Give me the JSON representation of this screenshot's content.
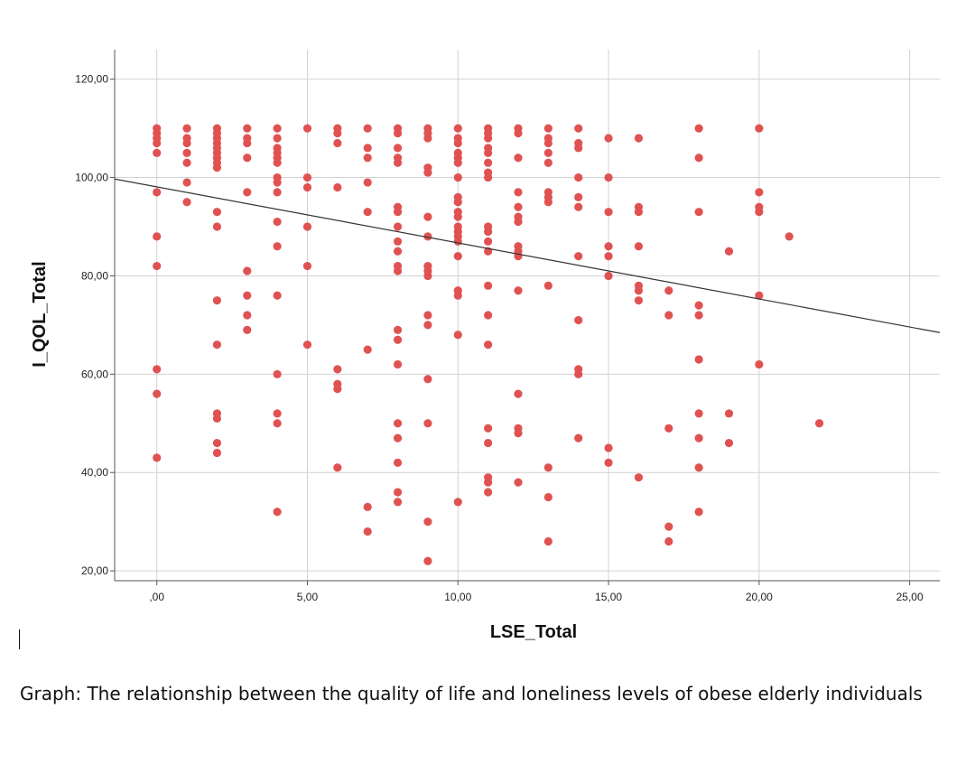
{
  "chart_data": {
    "type": "scatter",
    "xlabel": "LSE_Total",
    "ylabel": "I_QOL_Total",
    "xlim": [
      -1.4,
      26
    ],
    "ylim": [
      18,
      126
    ],
    "x_ticks": [
      0,
      5,
      10,
      15,
      20,
      25
    ],
    "x_tick_labels": [
      ",00",
      "5,00",
      "10,00",
      "15,00",
      "20,00",
      "25,00"
    ],
    "y_ticks": [
      20,
      40,
      60,
      80,
      100,
      120
    ],
    "y_tick_labels": [
      "20,00",
      "40,00",
      "60,00",
      "80,00",
      "100,00",
      "120,00"
    ],
    "grid": true,
    "point_color": "#e05252",
    "line_color": "#333333",
    "fit_line": {
      "intercept": 98.1,
      "slope": -1.14
    },
    "points": [
      [
        0,
        110
      ],
      [
        0,
        109
      ],
      [
        0,
        108
      ],
      [
        0,
        107
      ],
      [
        0,
        105
      ],
      [
        0,
        97
      ],
      [
        0,
        88
      ],
      [
        0,
        82
      ],
      [
        0,
        61
      ],
      [
        0,
        56
      ],
      [
        0,
        43
      ],
      [
        1,
        110
      ],
      [
        1,
        108
      ],
      [
        1,
        107
      ],
      [
        1,
        105
      ],
      [
        1,
        103
      ],
      [
        1,
        99
      ],
      [
        1,
        95
      ],
      [
        2,
        110
      ],
      [
        2,
        109
      ],
      [
        2,
        108
      ],
      [
        2,
        107
      ],
      [
        2,
        106
      ],
      [
        2,
        105
      ],
      [
        2,
        104
      ],
      [
        2,
        103
      ],
      [
        2,
        102
      ],
      [
        2,
        93
      ],
      [
        2,
        90
      ],
      [
        2,
        75
      ],
      [
        2,
        66
      ],
      [
        2,
        52
      ],
      [
        2,
        51
      ],
      [
        2,
        46
      ],
      [
        2,
        44
      ],
      [
        3,
        110
      ],
      [
        3,
        108
      ],
      [
        3,
        107
      ],
      [
        3,
        104
      ],
      [
        3,
        97
      ],
      [
        3,
        81
      ],
      [
        3,
        76
      ],
      [
        3,
        72
      ],
      [
        3,
        69
      ],
      [
        4,
        110
      ],
      [
        4,
        108
      ],
      [
        4,
        106
      ],
      [
        4,
        105
      ],
      [
        4,
        104
      ],
      [
        4,
        103
      ],
      [
        4,
        100
      ],
      [
        4,
        99
      ],
      [
        4,
        97
      ],
      [
        4,
        91
      ],
      [
        4,
        86
      ],
      [
        4,
        76
      ],
      [
        4,
        60
      ],
      [
        4,
        52
      ],
      [
        4,
        50
      ],
      [
        4,
        32
      ],
      [
        5,
        110
      ],
      [
        5,
        100
      ],
      [
        5,
        98
      ],
      [
        5,
        90
      ],
      [
        5,
        82
      ],
      [
        5,
        66
      ],
      [
        6,
        110
      ],
      [
        6,
        109
      ],
      [
        6,
        107
      ],
      [
        6,
        98
      ],
      [
        6,
        61
      ],
      [
        6,
        58
      ],
      [
        6,
        57
      ],
      [
        6,
        41
      ],
      [
        7,
        110
      ],
      [
        7,
        106
      ],
      [
        7,
        104
      ],
      [
        7,
        99
      ],
      [
        7,
        93
      ],
      [
        7,
        65
      ],
      [
        7,
        33
      ],
      [
        7,
        28
      ],
      [
        8,
        110
      ],
      [
        8,
        109
      ],
      [
        8,
        106
      ],
      [
        8,
        104
      ],
      [
        8,
        103
      ],
      [
        8,
        94
      ],
      [
        8,
        93
      ],
      [
        8,
        90
      ],
      [
        8,
        87
      ],
      [
        8,
        85
      ],
      [
        8,
        82
      ],
      [
        8,
        81
      ],
      [
        8,
        69
      ],
      [
        8,
        67
      ],
      [
        8,
        62
      ],
      [
        8,
        50
      ],
      [
        8,
        47
      ],
      [
        8,
        42
      ],
      [
        8,
        36
      ],
      [
        8,
        34
      ],
      [
        9,
        110
      ],
      [
        9,
        109
      ],
      [
        9,
        108
      ],
      [
        9,
        102
      ],
      [
        9,
        101
      ],
      [
        9,
        92
      ],
      [
        9,
        88
      ],
      [
        9,
        82
      ],
      [
        9,
        81
      ],
      [
        9,
        80
      ],
      [
        9,
        72
      ],
      [
        9,
        70
      ],
      [
        9,
        59
      ],
      [
        9,
        50
      ],
      [
        9,
        30
      ],
      [
        9,
        22
      ],
      [
        10,
        110
      ],
      [
        10,
        108
      ],
      [
        10,
        107
      ],
      [
        10,
        105
      ],
      [
        10,
        104
      ],
      [
        10,
        103
      ],
      [
        10,
        100
      ],
      [
        10,
        96
      ],
      [
        10,
        95
      ],
      [
        10,
        93
      ],
      [
        10,
        92
      ],
      [
        10,
        90
      ],
      [
        10,
        89
      ],
      [
        10,
        88
      ],
      [
        10,
        87
      ],
      [
        10,
        84
      ],
      [
        10,
        77
      ],
      [
        10,
        76
      ],
      [
        10,
        68
      ],
      [
        10,
        34
      ],
      [
        11,
        110
      ],
      [
        11,
        109
      ],
      [
        11,
        108
      ],
      [
        11,
        106
      ],
      [
        11,
        105
      ],
      [
        11,
        103
      ],
      [
        11,
        101
      ],
      [
        11,
        100
      ],
      [
        11,
        90
      ],
      [
        11,
        89
      ],
      [
        11,
        87
      ],
      [
        11,
        85
      ],
      [
        11,
        78
      ],
      [
        11,
        72
      ],
      [
        11,
        66
      ],
      [
        11,
        49
      ],
      [
        11,
        46
      ],
      [
        11,
        39
      ],
      [
        11,
        38
      ],
      [
        11,
        36
      ],
      [
        12,
        110
      ],
      [
        12,
        109
      ],
      [
        12,
        104
      ],
      [
        12,
        97
      ],
      [
        12,
        94
      ],
      [
        12,
        92
      ],
      [
        12,
        91
      ],
      [
        12,
        86
      ],
      [
        12,
        85
      ],
      [
        12,
        84
      ],
      [
        12,
        77
      ],
      [
        12,
        56
      ],
      [
        12,
        49
      ],
      [
        12,
        48
      ],
      [
        12,
        38
      ],
      [
        13,
        110
      ],
      [
        13,
        108
      ],
      [
        13,
        107
      ],
      [
        13,
        105
      ],
      [
        13,
        103
      ],
      [
        13,
        97
      ],
      [
        13,
        96
      ],
      [
        13,
        95
      ],
      [
        13,
        78
      ],
      [
        13,
        41
      ],
      [
        13,
        35
      ],
      [
        13,
        26
      ],
      [
        14,
        110
      ],
      [
        14,
        107
      ],
      [
        14,
        106
      ],
      [
        14,
        100
      ],
      [
        14,
        96
      ],
      [
        14,
        94
      ],
      [
        14,
        84
      ],
      [
        14,
        71
      ],
      [
        14,
        61
      ],
      [
        14,
        60
      ],
      [
        14,
        47
      ],
      [
        15,
        108
      ],
      [
        15,
        100
      ],
      [
        15,
        93
      ],
      [
        15,
        86
      ],
      [
        15,
        84
      ],
      [
        15,
        80
      ],
      [
        15,
        45
      ],
      [
        15,
        42
      ],
      [
        16,
        108
      ],
      [
        16,
        94
      ],
      [
        16,
        93
      ],
      [
        16,
        86
      ],
      [
        16,
        78
      ],
      [
        16,
        77
      ],
      [
        16,
        75
      ],
      [
        16,
        39
      ],
      [
        17,
        77
      ],
      [
        17,
        72
      ],
      [
        17,
        49
      ],
      [
        17,
        29
      ],
      [
        17,
        26
      ],
      [
        18,
        110
      ],
      [
        18,
        104
      ],
      [
        18,
        93
      ],
      [
        18,
        74
      ],
      [
        18,
        72
      ],
      [
        18,
        63
      ],
      [
        18,
        52
      ],
      [
        18,
        47
      ],
      [
        18,
        41
      ],
      [
        18,
        32
      ],
      [
        19,
        85
      ],
      [
        19,
        52
      ],
      [
        19,
        46
      ],
      [
        20,
        110
      ],
      [
        20,
        97
      ],
      [
        20,
        94
      ],
      [
        20,
        93
      ],
      [
        20,
        76
      ],
      [
        20,
        62
      ],
      [
        21,
        88
      ],
      [
        22,
        50
      ]
    ]
  },
  "caption": "Graph: The relationship between the quality of life and loneliness levels of obese elderly individuals"
}
